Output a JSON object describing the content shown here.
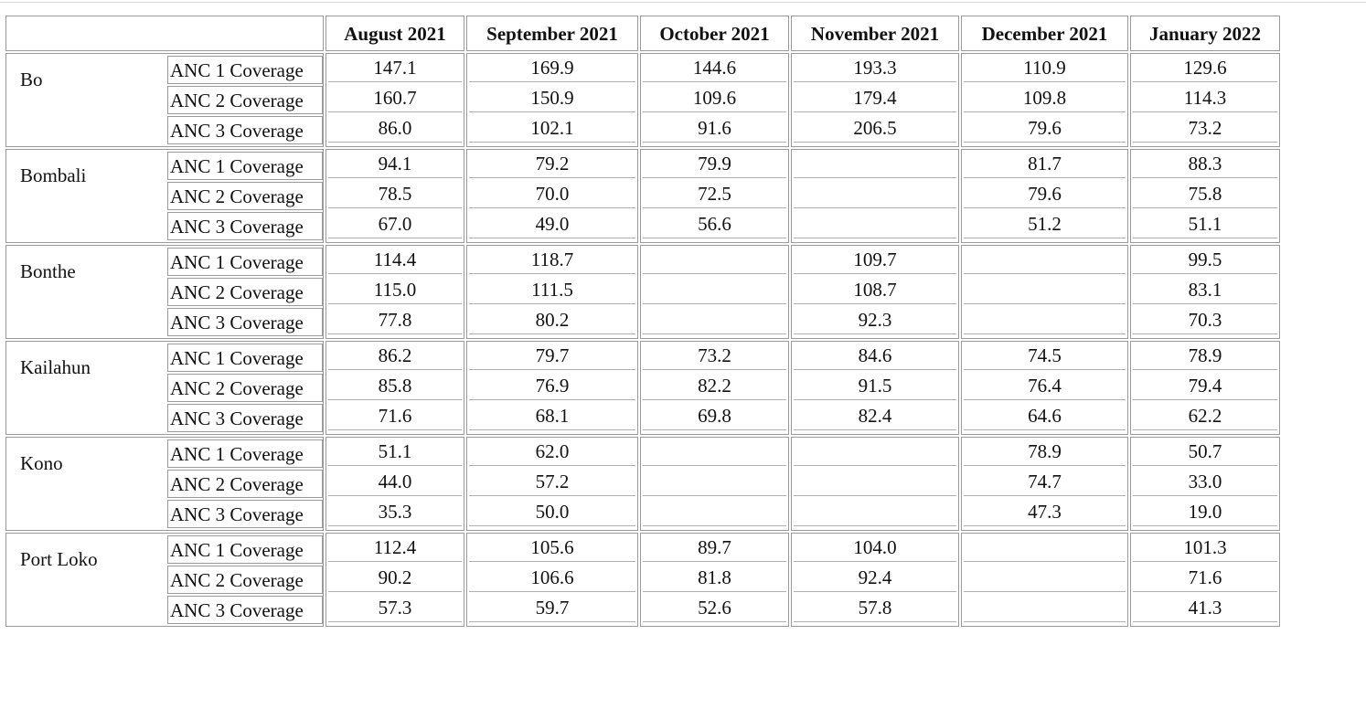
{
  "months": [
    "August 2021",
    "September 2021",
    "October 2021",
    "November 2021",
    "December 2021",
    "January 2022"
  ],
  "districts": [
    {
      "name": "Bo",
      "indicators": [
        "ANC 1 Coverage",
        "ANC 2 Coverage",
        "ANC 3 Coverage"
      ],
      "values": [
        [
          "147.1",
          "169.9",
          "144.6",
          "193.3",
          "110.9",
          "129.6"
        ],
        [
          "160.7",
          "150.9",
          "109.6",
          "179.4",
          "109.8",
          "114.3"
        ],
        [
          "86.0",
          "102.1",
          "91.6",
          "206.5",
          "79.6",
          "73.2"
        ]
      ]
    },
    {
      "name": "Bombali",
      "indicators": [
        "ANC 1 Coverage",
        "ANC 2 Coverage",
        "ANC 3 Coverage"
      ],
      "values": [
        [
          "94.1",
          "79.2",
          "79.9",
          "",
          "81.7",
          "88.3"
        ],
        [
          "78.5",
          "70.0",
          "72.5",
          "",
          "79.6",
          "75.8"
        ],
        [
          "67.0",
          "49.0",
          "56.6",
          "",
          "51.2",
          "51.1"
        ]
      ]
    },
    {
      "name": "Bonthe",
      "indicators": [
        "ANC 1 Coverage",
        "ANC 2 Coverage",
        "ANC 3 Coverage"
      ],
      "values": [
        [
          "114.4",
          "118.7",
          "",
          "109.7",
          "",
          "99.5"
        ],
        [
          "115.0",
          "111.5",
          "",
          "108.7",
          "",
          "83.1"
        ],
        [
          "77.8",
          "80.2",
          "",
          "92.3",
          "",
          "70.3"
        ]
      ]
    },
    {
      "name": "Kailahun",
      "indicators": [
        "ANC 1 Coverage",
        "ANC 2 Coverage",
        "ANC 3 Coverage"
      ],
      "values": [
        [
          "86.2",
          "79.7",
          "73.2",
          "84.6",
          "74.5",
          "78.9"
        ],
        [
          "85.8",
          "76.9",
          "82.2",
          "91.5",
          "76.4",
          "79.4"
        ],
        [
          "71.6",
          "68.1",
          "69.8",
          "82.4",
          "64.6",
          "62.2"
        ]
      ]
    },
    {
      "name": "Kono",
      "indicators": [
        "ANC 1 Coverage",
        "ANC 2 Coverage",
        "ANC 3 Coverage"
      ],
      "values": [
        [
          "51.1",
          "62.0",
          "",
          "",
          "78.9",
          "50.7"
        ],
        [
          "44.0",
          "57.2",
          "",
          "",
          "74.7",
          "33.0"
        ],
        [
          "35.3",
          "50.0",
          "",
          "",
          "47.3",
          "19.0"
        ]
      ]
    },
    {
      "name": "Port Loko",
      "indicators": [
        "ANC 1 Coverage",
        "ANC 2 Coverage",
        "ANC 3 Coverage"
      ],
      "values": [
        [
          "112.4",
          "105.6",
          "89.7",
          "104.0",
          "",
          "101.3"
        ],
        [
          "90.2",
          "106.6",
          "81.8",
          "92.4",
          "",
          "71.6"
        ],
        [
          "57.3",
          "59.7",
          "52.6",
          "57.8",
          "",
          "41.3"
        ]
      ]
    }
  ]
}
